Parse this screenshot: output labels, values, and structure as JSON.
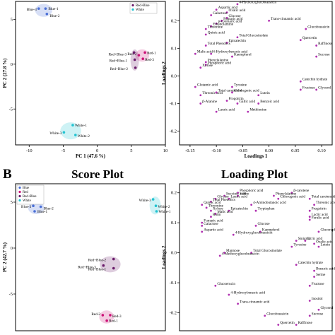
{
  "figure": {
    "panel_b": "B",
    "score_title": "Score Plot",
    "loading_title": "Loading Plot"
  },
  "colors": {
    "blue": "#4a6fd6",
    "red": "#cc1177",
    "redblue": "#6a1b6a",
    "white": "#22c3d1",
    "var": "#b02fb0"
  },
  "chart_data": [
    {
      "id": "A-score",
      "type": "scatter",
      "xlabel": "PC 1 (47.6 %)",
      "ylabel": "PC 2 (27.8 %)",
      "xlim": [
        -12,
        10
      ],
      "ylim": [
        -9,
        7
      ],
      "xticks": [
        "-10",
        "-5",
        "0",
        "5",
        "10"
      ],
      "yticks": [
        "-5",
        "0",
        "5"
      ],
      "legend": [
        "Red+Blue",
        "White"
      ],
      "legend_position": "top-right",
      "series": [
        {
          "name": "Blue",
          "color": "#4a6fd6",
          "points": [
            {
              "label": "Blue-3",
              "x": -8.6,
              "y": 6.2
            },
            {
              "label": "Blue-1",
              "x": -7.6,
              "y": 6.2
            },
            {
              "label": "Blue-2",
              "x": -7.4,
              "y": 5.6
            }
          ]
        },
        {
          "name": "Red",
          "color": "#cc1177",
          "points": [
            {
              "label": "Red-1",
              "x": 7.0,
              "y": 1.3
            },
            {
              "label": "Red-2",
              "x": 6.1,
              "y": 1.0
            },
            {
              "label": "Red-3",
              "x": 6.7,
              "y": 0.6
            }
          ]
        },
        {
          "name": "Red+Blue",
          "color": "#6a1b6a",
          "points": [
            {
              "label": "Red+Blue-3",
              "x": 5.4,
              "y": 1.3
            },
            {
              "label": "Red+Blue-1",
              "x": 5.5,
              "y": 0.5
            },
            {
              "label": "Red+Blue-2",
              "x": 5.6,
              "y": -0.4
            }
          ]
        },
        {
          "name": "White",
          "color": "#22c3d1",
          "points": [
            {
              "label": "White-1",
              "x": -3.6,
              "y": -6.8
            },
            {
              "label": "White-3",
              "x": -4.9,
              "y": -7.6
            },
            {
              "label": "White-2",
              "x": -3.2,
              "y": -7.9
            }
          ]
        }
      ]
    },
    {
      "id": "A-loading",
      "type": "scatter",
      "xlabel": "Loadings 1",
      "ylabel": "Loadings 2",
      "xlim": [
        -0.17,
        0.12
      ],
      "ylim": [
        -0.25,
        0.27
      ],
      "xticks": [
        "-0.15",
        "-0.10",
        "-0.05",
        "0.00",
        "0.05",
        "0.10"
      ],
      "yticks": [
        "-0.2",
        "-0.1",
        "0.0",
        "0.1",
        "0.2"
      ],
      "points": [
        {
          "label": "4-Hydroxyglucobrassicin",
          "x": -0.06,
          "y": 0.26
        },
        {
          "label": "Aspartic acid",
          "x": -0.1,
          "y": 0.24
        },
        {
          "label": "Oxalic acid",
          "x": -0.08,
          "y": 0.23
        },
        {
          "label": "Galactose",
          "x": -0.11,
          "y": 0.22
        },
        {
          "label": "Glucose",
          "x": -0.08,
          "y": 0.21
        },
        {
          "label": "Fumaric acid",
          "x": -0.09,
          "y": 0.2
        },
        {
          "label": "Trans-cinnamic acid",
          "x": 0.0,
          "y": 0.2
        },
        {
          "label": "p-coumaric acid",
          "x": -0.1,
          "y": 0.19
        },
        {
          "label": "Ethanolamine",
          "x": -0.11,
          "y": 0.18
        },
        {
          "label": "Threonine",
          "x": -0.12,
          "y": 0.17
        },
        {
          "label": "Glucobrassicin",
          "x": 0.07,
          "y": 0.17
        },
        {
          "label": "Quinic acid",
          "x": -0.12,
          "y": 0.15
        },
        {
          "label": "Total Glucosinolate",
          "x": -0.06,
          "y": 0.14
        },
        {
          "label": "Quercetin",
          "x": 0.06,
          "y": 0.13
        },
        {
          "label": "Epicatechin",
          "x": -0.08,
          "y": 0.12
        },
        {
          "label": "Total Phenolics",
          "x": -0.12,
          "y": 0.11
        },
        {
          "label": "Raffinose",
          "x": 0.09,
          "y": 0.11
        },
        {
          "label": "Malic acid",
          "x": -0.14,
          "y": 0.08
        },
        {
          "label": "4-Hydroxybenzoic acid",
          "x": -0.11,
          "y": 0.08
        },
        {
          "label": "Kaempferol",
          "x": -0.07,
          "y": 0.07
        },
        {
          "label": "Sucrose",
          "x": 0.09,
          "y": 0.07
        },
        {
          "label": "Phenylalanine",
          "x": -0.12,
          "y": 0.05
        },
        {
          "label": "Phosphoric acid",
          "x": -0.12,
          "y": 0.04
        },
        {
          "label": "Xylose",
          "x": -0.13,
          "y": 0.03
        },
        {
          "label": "Catechin hydrate",
          "x": 0.06,
          "y": -0.02
        },
        {
          "label": "Tyrosine",
          "x": -0.07,
          "y": -0.04
        },
        {
          "label": "Glutamic acid",
          "x": -0.14,
          "y": -0.04
        },
        {
          "label": "Fructose",
          "x": 0.06,
          "y": -0.05
        },
        {
          "label": "Glycerol",
          "x": 0.09,
          "y": -0.05
        },
        {
          "label": "Threonic acid",
          "x": -0.13,
          "y": -0.07
        },
        {
          "label": "Total carotenoid",
          "x": -0.1,
          "y": -0.06
        },
        {
          "label": "Chlorogenic acid",
          "x": -0.07,
          "y": -0.06
        },
        {
          "label": "Lutein",
          "x": -0.02,
          "y": -0.07
        },
        {
          "label": "Progoitrin",
          "x": -0.08,
          "y": -0.09
        },
        {
          "label": "β-Alanine",
          "x": -0.13,
          "y": -0.1
        },
        {
          "label": "Gallic acid",
          "x": -0.06,
          "y": -0.1
        },
        {
          "label": "Benzoic acid",
          "x": -0.02,
          "y": -0.1
        },
        {
          "label": "Lauric acid",
          "x": -0.1,
          "y": -0.13
        },
        {
          "label": "Methionine",
          "x": -0.04,
          "y": -0.13
        }
      ]
    },
    {
      "id": "B-score",
      "type": "scatter",
      "xlabel": "PC 1 (47.6 %)",
      "ylabel": "PC 2 (42.7 %)",
      "xlim": [
        -12,
        10
      ],
      "ylim": [
        -9,
        7
      ],
      "yticks": [
        "-5",
        "0",
        "5"
      ],
      "legend": [
        "Blue",
        "Red",
        "Red+Blue",
        "White"
      ],
      "legend_position": "top-left",
      "series": [
        {
          "name": "Blue",
          "color": "#4a6fd6",
          "points": [
            {
              "label": "Blue-3",
              "x": -9.4,
              "y": 4.6
            },
            {
              "label": "Blue-2",
              "x": -8.3,
              "y": 4.5
            },
            {
              "label": "Blue-1",
              "x": -9.2,
              "y": 4.0
            }
          ]
        },
        {
          "name": "White",
          "color": "#22c3d1",
          "points": [
            {
              "label": "White-3",
              "x": 8.2,
              "y": 5.3
            },
            {
              "label": "White-2",
              "x": 8.6,
              "y": 4.6
            },
            {
              "label": "White-1",
              "x": 8.7,
              "y": 4.0
            }
          ]
        },
        {
          "name": "Red+Blue",
          "color": "#6a1b6a",
          "points": [
            {
              "label": "Red+Blue-2",
              "x": 2.4,
              "y": -1.2
            },
            {
              "label": "Red+Blue-3",
              "x": 0.9,
              "y": -1.9
            },
            {
              "label": "Red+Blue-1",
              "x": 2.4,
              "y": -2.2
            }
          ]
        },
        {
          "name": "Red",
          "color": "#cc1177",
          "points": [
            {
              "label": "Red-2",
              "x": 0.8,
              "y": -7.3
            },
            {
              "label": "Red-3",
              "x": 1.9,
              "y": -7.3
            },
            {
              "label": "Red-1",
              "x": 1.4,
              "y": -7.9
            }
          ]
        }
      ]
    },
    {
      "id": "B-loading",
      "type": "scatter",
      "xlabel": "",
      "ylabel": "Loadings 2",
      "xlim": [
        -0.2,
        0.14
      ],
      "ylim": [
        -0.26,
        0.23
      ],
      "yticks": [
        "-0.2",
        "-0.1",
        "0.0",
        "0.1",
        "0.2"
      ],
      "points": [
        {
          "label": "Phosphoric acid",
          "x": -0.07,
          "y": 0.2
        },
        {
          "label": "β-carotene",
          "x": 0.05,
          "y": 0.2
        },
        {
          "label": "Succinic acid",
          "x": -0.1,
          "y": 0.19
        },
        {
          "label": "Valine",
          "x": -0.07,
          "y": 0.19
        },
        {
          "label": "Glycine",
          "x": -0.12,
          "y": 0.18
        },
        {
          "label": "Lauric acid",
          "x": -0.09,
          "y": 0.18
        },
        {
          "label": "Total Phenolics",
          "x": -0.13,
          "y": 0.17
        },
        {
          "label": "Quinic acid",
          "x": -0.15,
          "y": 0.16
        },
        {
          "label": "Threonine",
          "x": -0.14,
          "y": 0.15
        },
        {
          "label": "Xylose",
          "x": -0.13,
          "y": 0.14
        },
        {
          "label": "Epicatechin",
          "x": -0.09,
          "y": 0.14
        },
        {
          "label": "Malic acid",
          "x": -0.12,
          "y": 0.13
        },
        {
          "label": "Rutin",
          "x": -0.13,
          "y": 0.12
        },
        {
          "label": "Fumaric acid",
          "x": -0.15,
          "y": 0.1
        },
        {
          "label": "Galactose",
          "x": -0.15,
          "y": 0.09
        },
        {
          "label": "Aspartic acid",
          "x": -0.15,
          "y": 0.07
        },
        {
          "label": "Phenylalanine",
          "x": 0.01,
          "y": 0.19
        },
        {
          "label": "Chlorogenic acid",
          "x": 0.02,
          "y": 0.18
        },
        {
          "label": "Total carotenoid",
          "x": 0.09,
          "y": 0.18
        },
        {
          "label": "4-Aminobutanoic acid",
          "x": -0.04,
          "y": 0.16
        },
        {
          "label": "Tryptophan",
          "x": -0.03,
          "y": 0.14
        },
        {
          "label": "Threonic acid",
          "x": 0.1,
          "y": 0.16
        },
        {
          "label": "Progoitrin",
          "x": 0.09,
          "y": 0.14
        },
        {
          "label": "Lactic acid",
          "x": 0.09,
          "y": 0.12
        },
        {
          "label": "Ferulic acid",
          "x": 0.09,
          "y": 0.11
        },
        {
          "label": "Glucose",
          "x": -0.03,
          "y": 0.09
        },
        {
          "label": "Kaempferol",
          "x": -0.02,
          "y": 0.07
        },
        {
          "label": "Glucoraphanin",
          "x": 0.11,
          "y": 0.07
        },
        {
          "label": "Sinigrin",
          "x": 0.06,
          "y": 0.04
        },
        {
          "label": "Citric acid",
          "x": 0.08,
          "y": 0.04
        },
        {
          "label": "4-Hydroxyglucobrassicin",
          "x": -0.08,
          "y": 0.06
        },
        {
          "label": "Oxalic acid",
          "x": 0.1,
          "y": 0.03
        },
        {
          "label": "Tyrosine",
          "x": 0.05,
          "y": 0.02
        },
        {
          "label": "Lutein",
          "x": 0.11,
          "y": 0.02
        },
        {
          "label": "Mannose",
          "x": -0.1,
          "y": 0.0
        },
        {
          "label": "Total Glucosinolate",
          "x": -0.04,
          "y": 0.0
        },
        {
          "label": "4-Methoxyglucobrassicin",
          "x": -0.11,
          "y": -0.01
        },
        {
          "label": "Catechin hydrate",
          "x": 0.06,
          "y": -0.04
        },
        {
          "label": "Benzoic acid",
          "x": 0.1,
          "y": -0.06
        },
        {
          "label": "Serine",
          "x": 0.1,
          "y": -0.08
        },
        {
          "label": "Glucoerucin",
          "x": -0.12,
          "y": -0.11
        },
        {
          "label": "Fructose",
          "x": 0.09,
          "y": -0.11
        },
        {
          "label": "4-Hydroxybenzoic acid",
          "x": -0.09,
          "y": -0.14
        },
        {
          "label": "Trans-cinnamic acid",
          "x": -0.07,
          "y": -0.17
        },
        {
          "label": "Inositol",
          "x": 0.09,
          "y": -0.16
        },
        {
          "label": "Glycerol",
          "x": 0.11,
          "y": -0.19
        },
        {
          "label": "Glucobrassicin",
          "x": -0.01,
          "y": -0.21
        },
        {
          "label": "Sucrose",
          "x": 0.09,
          "y": -0.21
        },
        {
          "label": "Quercetin",
          "x": 0.02,
          "y": -0.24
        },
        {
          "label": "Raffinose",
          "x": 0.06,
          "y": -0.24
        }
      ]
    }
  ]
}
